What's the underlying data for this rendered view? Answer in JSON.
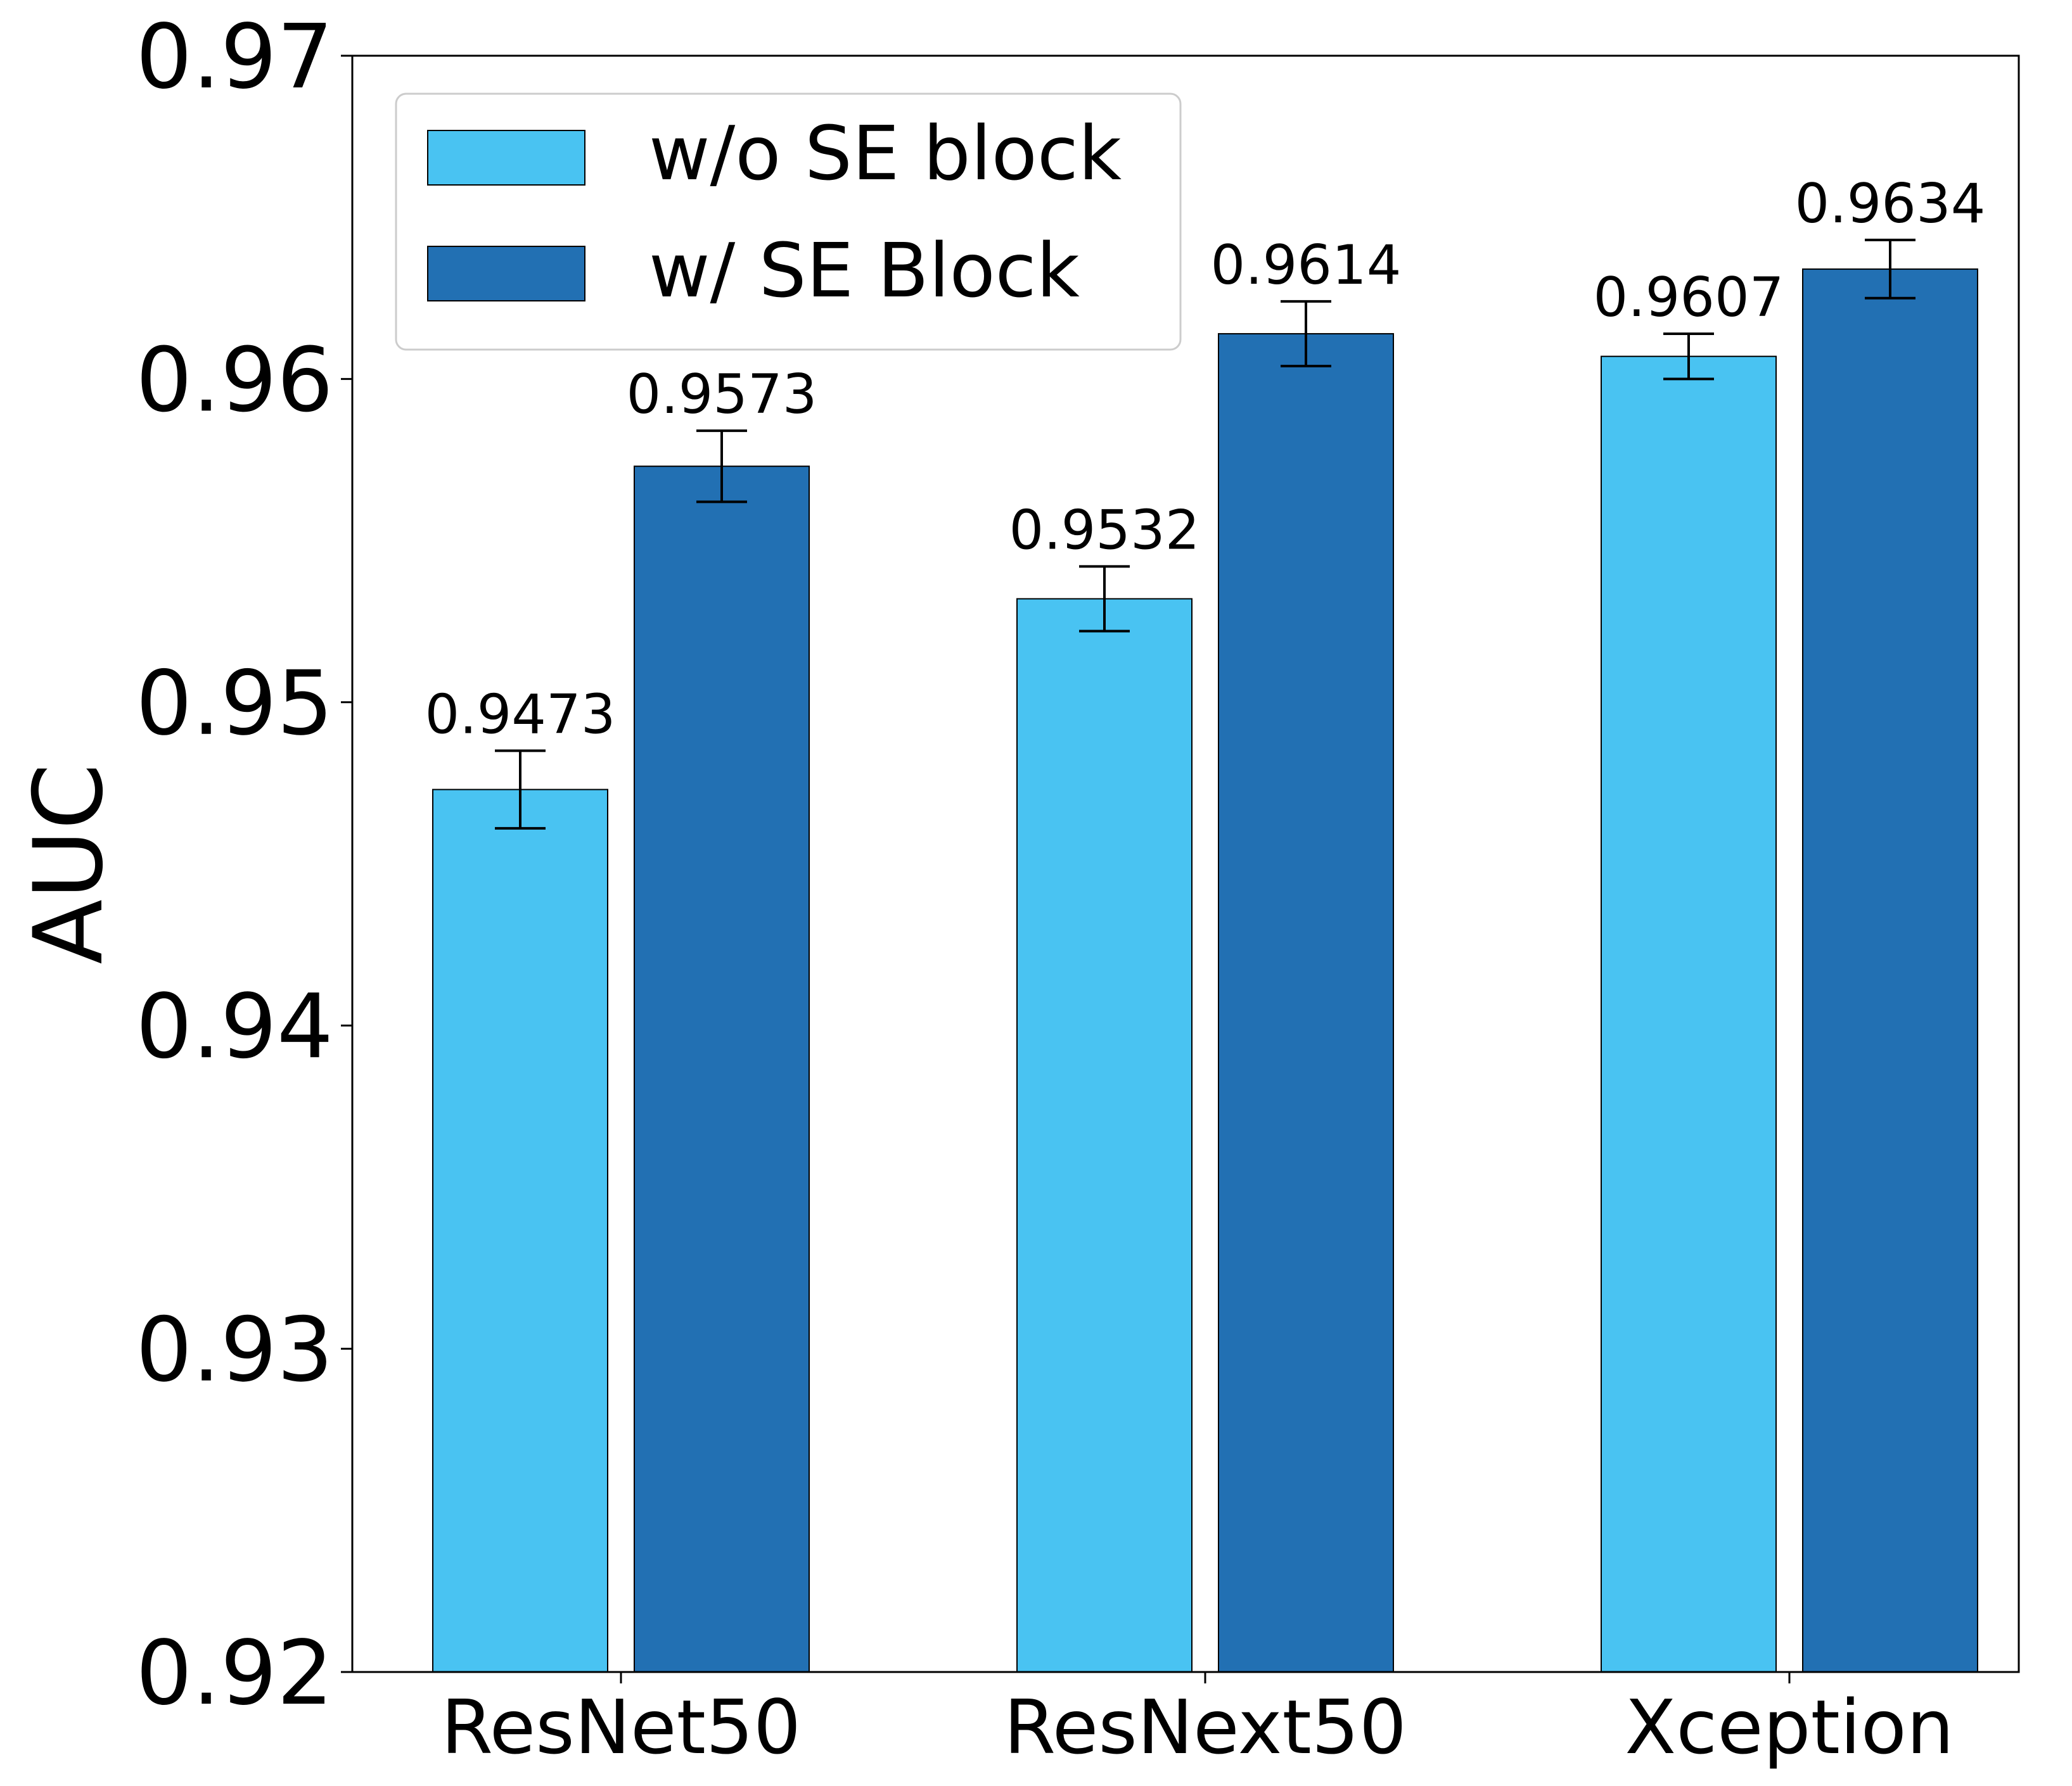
{
  "chart_data": {
    "type": "bar",
    "title": "",
    "xlabel": "",
    "ylabel": "AUC",
    "ylim": [
      0.92,
      0.97
    ],
    "yticks": [
      "0.92",
      "0.93",
      "0.94",
      "0.95",
      "0.96",
      "0.97"
    ],
    "categories": [
      "ResNet50",
      "ResNext50",
      "Xception"
    ],
    "series": [
      {
        "name": "w/o SE block",
        "color": "#49C3F2",
        "values": [
          0.9473,
          0.9532,
          0.9607
        ],
        "labels": [
          "0.9473",
          "0.9532",
          "0.9607"
        ],
        "errors": [
          0.0012,
          0.001,
          0.0007
        ]
      },
      {
        "name": "w/ SE Block",
        "color": "#2270B3",
        "values": [
          0.9573,
          0.9614,
          0.9634
        ],
        "labels": [
          "0.9573",
          "0.9614",
          "0.9634"
        ],
        "errors": [
          0.0011,
          0.001,
          0.0009
        ]
      }
    ],
    "legend_position": "top-left",
    "grid": false
  }
}
